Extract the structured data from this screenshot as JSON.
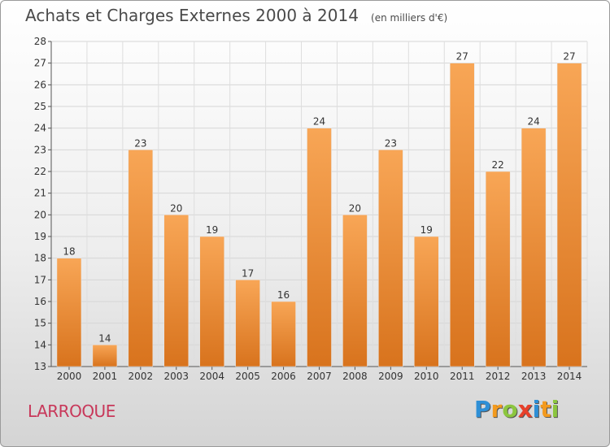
{
  "title": "Achats et Charges Externes 2000 à 2014",
  "subtitle": "(en milliers d'€)",
  "commune": "LARROQUE",
  "logo": {
    "text": "Proxiti",
    "letters": [
      {
        "ch": "P",
        "color": "#2e8fd6"
      },
      {
        "ch": "r",
        "color": "#f39a1e"
      },
      {
        "ch": "o",
        "color": "#8cc63f"
      },
      {
        "ch": "x",
        "color": "#e8412b"
      },
      {
        "ch": "i",
        "color": "#2e8fd6"
      },
      {
        "ch": "t",
        "color": "#f39a1e"
      },
      {
        "ch": "i",
        "color": "#8cc63f"
      }
    ]
  },
  "colors": {
    "bar_top": "#f8a656",
    "bar_bottom": "#d8731d",
    "commune": "#c8385a"
  },
  "chart_data": {
    "type": "bar",
    "categories": [
      "2000",
      "2001",
      "2002",
      "2003",
      "2004",
      "2005",
      "2006",
      "2007",
      "2008",
      "2009",
      "2010",
      "2011",
      "2012",
      "2013",
      "2014"
    ],
    "values": [
      18,
      14,
      23,
      20,
      19,
      17,
      16,
      24,
      20,
      23,
      19,
      27,
      22,
      24,
      27
    ],
    "title": "Achats et Charges Externes 2000 à 2014",
    "ylim": [
      13,
      28
    ],
    "yticks": [
      13,
      14,
      15,
      16,
      17,
      18,
      19,
      20,
      21,
      22,
      23,
      24,
      25,
      26,
      27,
      28
    ],
    "grid": true,
    "data_labels": true
  }
}
